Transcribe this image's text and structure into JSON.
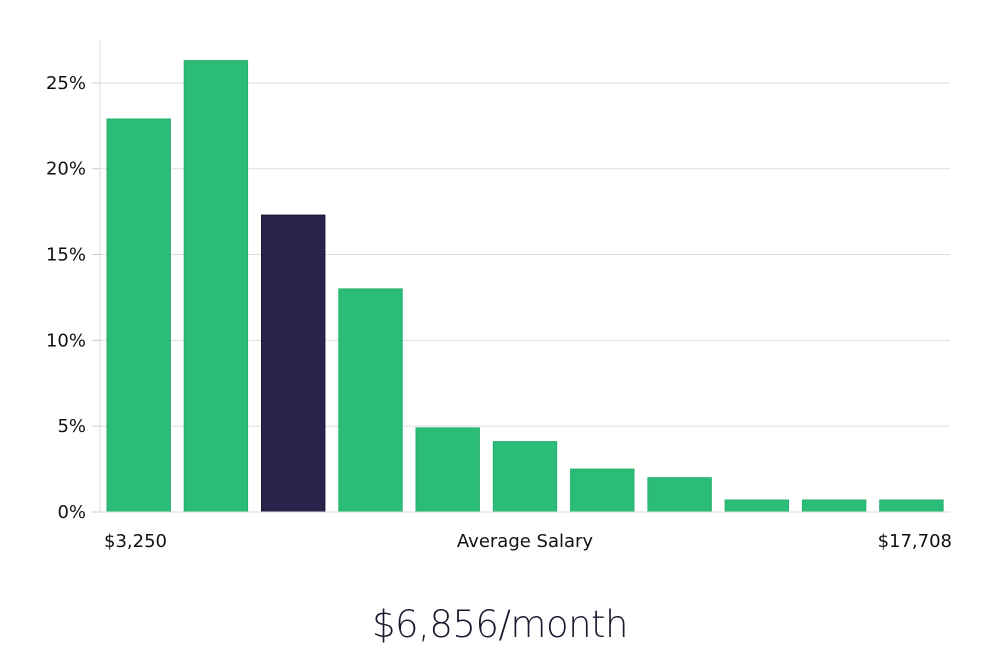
{
  "chart_data": {
    "type": "bar",
    "xlabel": "Average Salary",
    "x_min_label": "$3,250",
    "x_max_label": "$17,708",
    "ylim": [
      0,
      27.5
    ],
    "yticks": [
      0,
      5,
      10,
      15,
      20,
      25
    ],
    "ytick_labels": [
      "0%",
      "5%",
      "10%",
      "15%",
      "20%",
      "25%"
    ],
    "values": [
      22.9,
      26.3,
      17.3,
      13.0,
      4.9,
      4.1,
      2.5,
      2.0,
      0.7,
      0.7,
      0.7
    ],
    "highlight_index": 2,
    "grid": true,
    "colors": {
      "bar": "#2bbd77",
      "bar_highlight": "#28234a",
      "grid": "#dddddd",
      "text": "#111111"
    }
  },
  "caption": "$6,856/month"
}
